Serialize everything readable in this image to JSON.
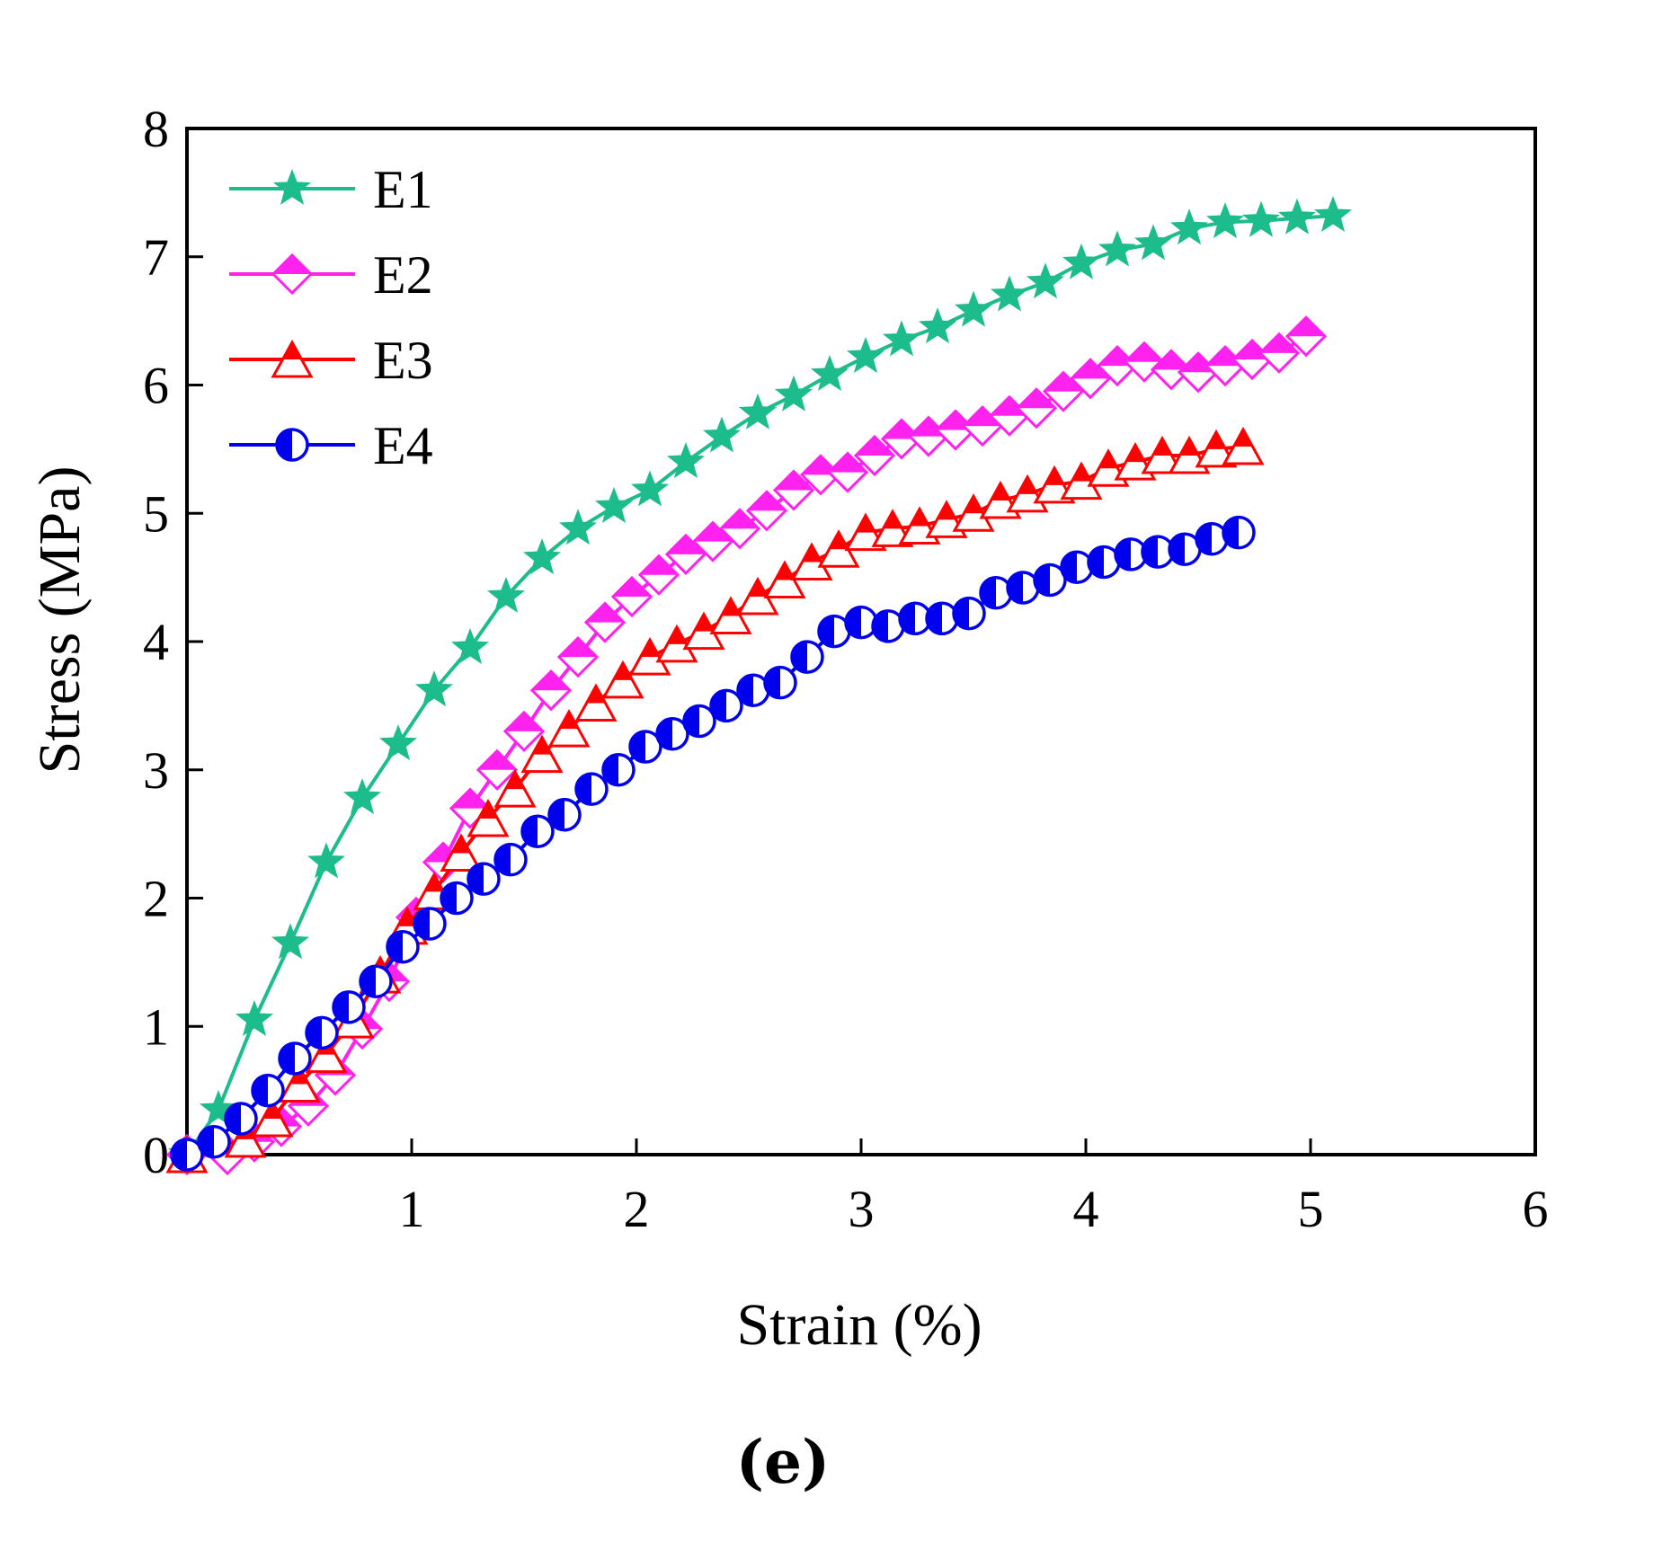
{
  "chart_data": {
    "type": "line",
    "title": "",
    "panel_label": "(e)",
    "xlabel": "Strain (%)",
    "ylabel": "Stress (MPa)",
    "xlim": [
      0,
      6
    ],
    "ylim": [
      0,
      8
    ],
    "x_ticks": [
      1,
      2,
      3,
      4,
      5,
      6
    ],
    "y_ticks": [
      0,
      1,
      2,
      3,
      4,
      5,
      6,
      7,
      8
    ],
    "x_tick_labels": [
      "1",
      "2",
      "3",
      "4",
      "5",
      "6"
    ],
    "y_tick_labels": [
      "0",
      "1",
      "2",
      "3",
      "4",
      "5",
      "6",
      "7",
      "8"
    ],
    "grid": false,
    "legend_position": "top-left",
    "series": [
      {
        "name": "E1",
        "marker": "star",
        "color": "#1dbc8c",
        "x": [
          0.0,
          0.14,
          0.3,
          0.46,
          0.62,
          0.78,
          0.94,
          1.1,
          1.26,
          1.42,
          1.58,
          1.74,
          1.9,
          2.06,
          2.22,
          2.38,
          2.54,
          2.7,
          2.86,
          3.02,
          3.18,
          3.34,
          3.5,
          3.66,
          3.82,
          3.98,
          4.14,
          4.3,
          4.46,
          4.62,
          4.78,
          4.94,
          5.1
        ],
        "y": [
          0.0,
          0.35,
          1.05,
          1.65,
          2.28,
          2.78,
          3.2,
          3.62,
          3.95,
          4.35,
          4.65,
          4.88,
          5.05,
          5.18,
          5.4,
          5.6,
          5.78,
          5.92,
          6.08,
          6.22,
          6.35,
          6.45,
          6.58,
          6.7,
          6.8,
          6.95,
          7.05,
          7.1,
          7.22,
          7.27,
          7.28,
          7.3,
          7.32
        ]
      },
      {
        "name": "E2",
        "marker": "diamond",
        "color": "#ff22ee",
        "x": [
          0.0,
          0.18,
          0.3,
          0.42,
          0.54,
          0.66,
          0.78,
          0.9,
          1.02,
          1.14,
          1.26,
          1.38,
          1.5,
          1.62,
          1.74,
          1.86,
          1.98,
          2.1,
          2.22,
          2.34,
          2.46,
          2.58,
          2.7,
          2.82,
          2.94,
          3.06,
          3.18,
          3.3,
          3.42,
          3.54,
          3.66,
          3.78,
          3.9,
          4.02,
          4.14,
          4.26,
          4.38,
          4.5,
          4.62,
          4.74,
          4.86,
          4.98
        ],
        "y": [
          0.0,
          0.0,
          0.1,
          0.22,
          0.38,
          0.62,
          0.98,
          1.35,
          1.85,
          2.28,
          2.7,
          3.0,
          3.3,
          3.62,
          3.88,
          4.15,
          4.35,
          4.52,
          4.68,
          4.78,
          4.88,
          5.02,
          5.18,
          5.3,
          5.32,
          5.45,
          5.58,
          5.6,
          5.65,
          5.68,
          5.76,
          5.82,
          5.95,
          6.05,
          6.15,
          6.18,
          6.12,
          6.1,
          6.15,
          6.2,
          6.25,
          6.38
        ]
      },
      {
        "name": "E3",
        "marker": "triangle",
        "color": "#ff0000",
        "x": [
          0.0,
          0.26,
          0.38,
          0.5,
          0.62,
          0.74,
          0.86,
          0.98,
          1.1,
          1.22,
          1.34,
          1.46,
          1.58,
          1.7,
          1.82,
          1.94,
          2.06,
          2.18,
          2.3,
          2.42,
          2.54,
          2.66,
          2.78,
          2.9,
          3.02,
          3.14,
          3.26,
          3.38,
          3.5,
          3.62,
          3.74,
          3.86,
          3.98,
          4.1,
          4.22,
          4.34,
          4.46,
          4.58,
          4.7
        ],
        "y": [
          0.0,
          0.12,
          0.28,
          0.55,
          0.78,
          1.05,
          1.4,
          1.78,
          2.05,
          2.35,
          2.62,
          2.85,
          3.12,
          3.32,
          3.52,
          3.7,
          3.88,
          3.98,
          4.08,
          4.2,
          4.35,
          4.48,
          4.62,
          4.72,
          4.85,
          4.88,
          4.9,
          4.95,
          5.0,
          5.1,
          5.15,
          5.22,
          5.25,
          5.35,
          5.4,
          5.45,
          5.45,
          5.5,
          5.52
        ]
      },
      {
        "name": "E4",
        "marker": "half-circle",
        "color": "#0000ee",
        "x": [
          0.0,
          0.12,
          0.24,
          0.36,
          0.48,
          0.6,
          0.72,
          0.84,
          0.96,
          1.08,
          1.2,
          1.32,
          1.44,
          1.56,
          1.68,
          1.8,
          1.92,
          2.04,
          2.16,
          2.28,
          2.4,
          2.52,
          2.64,
          2.76,
          2.88,
          3.0,
          3.12,
          3.24,
          3.36,
          3.48,
          3.6,
          3.72,
          3.84,
          3.96,
          4.08,
          4.2,
          4.32,
          4.44,
          4.56,
          4.68
        ],
        "y": [
          0.0,
          0.1,
          0.28,
          0.5,
          0.75,
          0.95,
          1.15,
          1.35,
          1.62,
          1.8,
          2.0,
          2.15,
          2.3,
          2.52,
          2.65,
          2.85,
          3.0,
          3.18,
          3.28,
          3.38,
          3.5,
          3.62,
          3.68,
          3.88,
          4.08,
          4.15,
          4.12,
          4.18,
          4.18,
          4.22,
          4.38,
          4.42,
          4.48,
          4.58,
          4.62,
          4.68,
          4.7,
          4.72,
          4.8,
          4.85
        ]
      }
    ]
  }
}
